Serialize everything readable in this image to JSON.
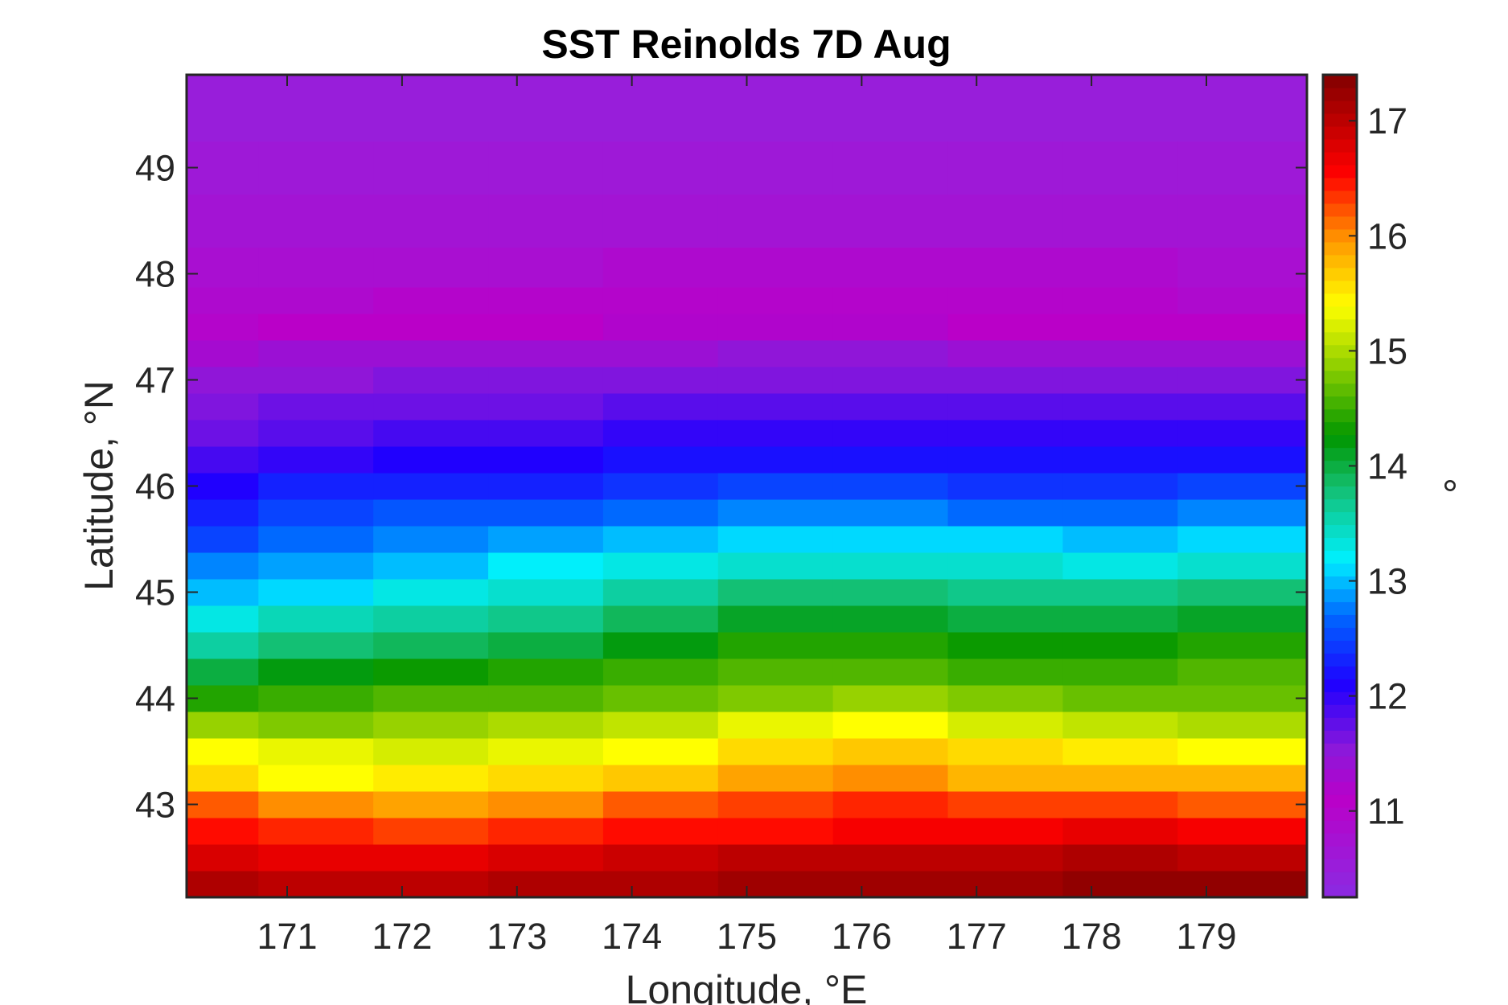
{
  "chart_data": {
    "type": "heatmap",
    "title": "SST Reinolds 7D Aug",
    "xlabel": "Longitude, °E",
    "ylabel": "Latitude, °N",
    "colorbar_label": "°",
    "xlim": [
      170.125,
      179.875
    ],
    "ylim": [
      42.125,
      49.875
    ],
    "xticks": [
      "171",
      "172",
      "173",
      "174",
      "175",
      "176",
      "177",
      "178",
      "179"
    ],
    "yticks": [
      "43",
      "44",
      "45",
      "46",
      "47",
      "48",
      "49"
    ],
    "color_range": [
      10.25,
      17.4
    ],
    "colorbar_ticks": [
      "11",
      "12",
      "13",
      "14",
      "15",
      "16",
      "17"
    ],
    "colormap": "jet-like with purple low end",
    "grid": false,
    "x": [
      170.25,
      171.25,
      172.25,
      173.25,
      174.25,
      175.25,
      176.25,
      177.25,
      178.25,
      179.25
    ],
    "y": [
      42.25,
      42.5,
      42.75,
      43.0,
      43.25,
      43.5,
      43.75,
      44.0,
      44.25,
      44.5,
      44.75,
      45.0,
      45.25,
      45.5,
      45.75,
      46.0,
      46.25,
      46.5,
      46.75,
      47.0,
      47.25,
      47.5,
      47.75,
      48.0,
      48.5,
      49.0,
      49.5
    ],
    "values": [
      [
        17.1,
        17.0,
        17.0,
        17.1,
        17.1,
        17.2,
        17.2,
        17.2,
        17.3,
        17.3
      ],
      [
        16.8,
        16.7,
        16.7,
        16.8,
        16.9,
        17.0,
        17.0,
        17.0,
        17.1,
        17.0
      ],
      [
        16.5,
        16.4,
        16.3,
        16.4,
        16.5,
        16.5,
        16.6,
        16.6,
        16.7,
        16.6
      ],
      [
        16.2,
        16.0,
        15.9,
        16.0,
        16.2,
        16.3,
        16.4,
        16.3,
        16.3,
        16.2
      ],
      [
        15.6,
        15.4,
        15.5,
        15.6,
        15.7,
        15.9,
        16.0,
        15.8,
        15.8,
        15.8
      ],
      [
        15.4,
        15.3,
        15.2,
        15.3,
        15.4,
        15.6,
        15.7,
        15.6,
        15.5,
        15.4
      ],
      [
        14.9,
        14.8,
        14.9,
        15.0,
        15.1,
        15.3,
        15.4,
        15.2,
        15.1,
        15.0
      ],
      [
        14.4,
        14.5,
        14.6,
        14.6,
        14.7,
        14.8,
        14.9,
        14.8,
        14.7,
        14.7
      ],
      [
        14.0,
        14.2,
        14.3,
        14.4,
        14.5,
        14.6,
        14.6,
        14.5,
        14.5,
        14.6
      ],
      [
        13.6,
        13.8,
        13.9,
        14.0,
        14.2,
        14.4,
        14.4,
        14.3,
        14.3,
        14.4
      ],
      [
        13.3,
        13.5,
        13.6,
        13.7,
        13.9,
        14.1,
        14.1,
        14.0,
        14.0,
        14.1
      ],
      [
        13.0,
        13.1,
        13.3,
        13.4,
        13.6,
        13.8,
        13.8,
        13.7,
        13.7,
        13.8
      ],
      [
        12.8,
        12.9,
        13.0,
        13.2,
        13.3,
        13.4,
        13.4,
        13.4,
        13.3,
        13.4
      ],
      [
        12.5,
        12.7,
        12.8,
        12.9,
        13.0,
        13.1,
        13.1,
        13.1,
        13.0,
        13.1
      ],
      [
        12.3,
        12.5,
        12.6,
        12.6,
        12.7,
        12.8,
        12.8,
        12.7,
        12.7,
        12.8
      ],
      [
        12.1,
        12.3,
        12.3,
        12.3,
        12.4,
        12.5,
        12.5,
        12.4,
        12.4,
        12.5
      ],
      [
        11.9,
        12.0,
        12.1,
        12.1,
        12.2,
        12.2,
        12.2,
        12.2,
        12.2,
        12.2
      ],
      [
        11.7,
        11.8,
        11.9,
        11.9,
        12.0,
        12.0,
        12.0,
        12.0,
        12.0,
        12.0
      ],
      [
        11.6,
        11.7,
        11.7,
        11.7,
        11.8,
        11.8,
        11.8,
        11.8,
        11.8,
        11.8
      ],
      [
        11.5,
        11.5,
        11.6,
        11.6,
        11.6,
        11.6,
        11.6,
        11.6,
        11.6,
        11.6
      ],
      [
        11.3,
        11.4,
        11.4,
        11.4,
        11.4,
        11.5,
        11.5,
        11.4,
        11.4,
        11.4
      ],
      [
        11.0,
        11.1,
        11.1,
        11.1,
        11.2,
        11.2,
        11.2,
        11.1,
        11.1,
        11.1
      ],
      [
        10.9,
        10.9,
        11.0,
        11.0,
        11.0,
        11.0,
        11.0,
        11.0,
        11.0,
        10.9
      ],
      [
        10.8,
        10.8,
        10.8,
        10.8,
        10.9,
        10.9,
        10.9,
        10.9,
        10.9,
        10.8
      ],
      [
        10.7,
        10.7,
        10.7,
        10.7,
        10.7,
        10.7,
        10.7,
        10.7,
        10.7,
        10.7
      ],
      [
        10.6,
        10.6,
        10.6,
        10.6,
        10.6,
        10.6,
        10.6,
        10.6,
        10.6,
        10.6
      ],
      [
        10.5,
        10.5,
        10.5,
        10.5,
        10.5,
        10.5,
        10.5,
        10.5,
        10.5,
        10.5
      ]
    ]
  }
}
